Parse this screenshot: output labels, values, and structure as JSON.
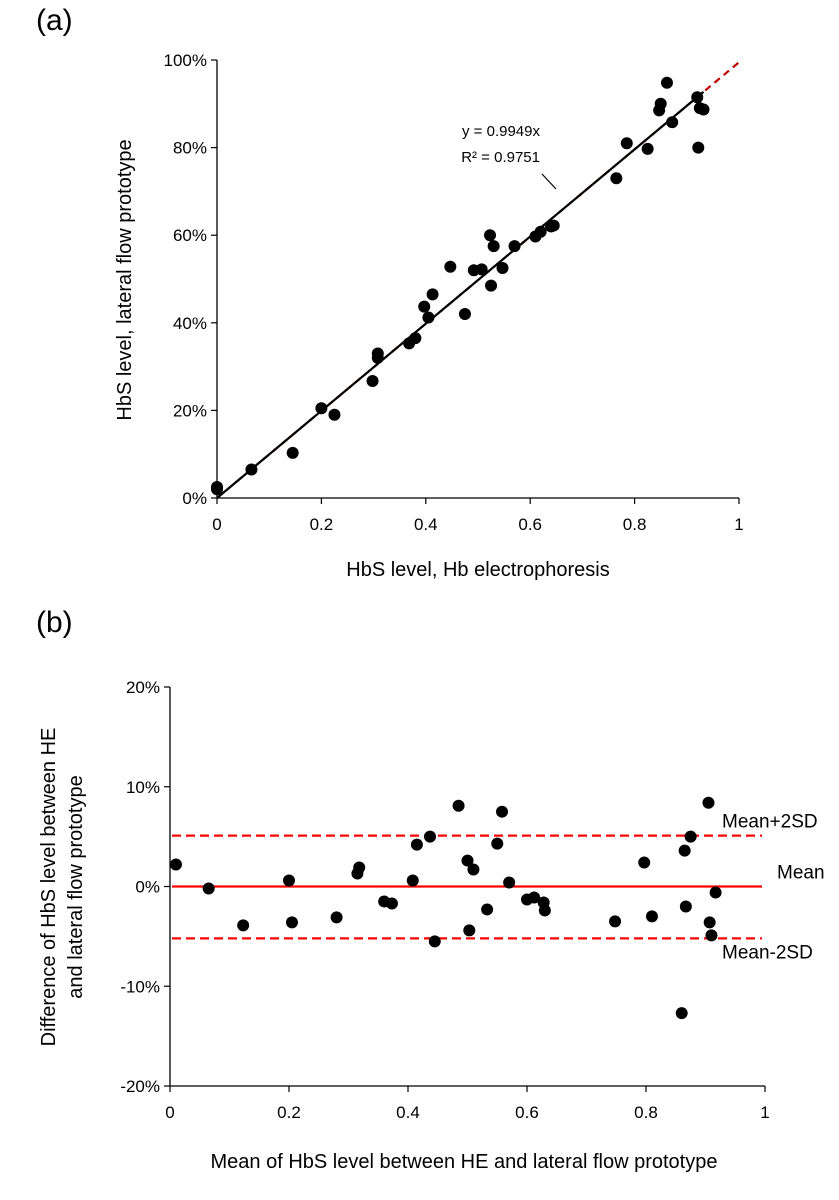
{
  "chart_data": [
    {
      "type": "scatter",
      "panel_label": "(a)",
      "xlabel": "HbS level, Hb electrophoresis",
      "ylabel": "HbS level, lateral flow prototype",
      "xlim": [
        0,
        1
      ],
      "ylim": [
        0,
        1
      ],
      "x_ticks": [
        0,
        0.2,
        0.4,
        0.6,
        0.8,
        1
      ],
      "x_tick_labels": [
        "0",
        "0.2",
        "0.4",
        "0.6",
        "0.8",
        "1"
      ],
      "y_ticks": [
        0,
        0.2,
        0.4,
        0.6,
        0.8,
        1
      ],
      "y_tick_labels": [
        "0%",
        "20%",
        "40%",
        "60%",
        "80%",
        "100%"
      ],
      "grid": false,
      "trendline": {
        "slope": 0.9949,
        "intercept": 0,
        "color": "#c00000",
        "equation_label": "y = 0.9949x",
        "r2_label": "R² = 0.9751"
      },
      "series": [
        {
          "name": "samples",
          "color": "#000000",
          "points": [
            [
              0.0,
              0.02
            ],
            [
              0.0,
              0.025
            ],
            [
              0.066,
              0.065
            ],
            [
              0.145,
              0.103
            ],
            [
              0.2,
              0.205
            ],
            [
              0.225,
              0.19
            ],
            [
              0.298,
              0.267
            ],
            [
              0.308,
              0.32
            ],
            [
              0.308,
              0.33
            ],
            [
              0.368,
              0.353
            ],
            [
              0.38,
              0.365
            ],
            [
              0.397,
              0.437
            ],
            [
              0.405,
              0.412
            ],
            [
              0.413,
              0.465
            ],
            [
              0.447,
              0.528
            ],
            [
              0.475,
              0.42
            ],
            [
              0.492,
              0.52
            ],
            [
              0.507,
              0.522
            ],
            [
              0.523,
              0.6
            ],
            [
              0.525,
              0.485
            ],
            [
              0.53,
              0.575
            ],
            [
              0.547,
              0.525
            ],
            [
              0.57,
              0.575
            ],
            [
              0.61,
              0.597
            ],
            [
              0.62,
              0.608
            ],
            [
              0.64,
              0.62
            ],
            [
              0.645,
              0.622
            ],
            [
              0.765,
              0.73
            ],
            [
              0.785,
              0.81
            ],
            [
              0.825,
              0.797
            ],
            [
              0.847,
              0.885
            ],
            [
              0.85,
              0.9
            ],
            [
              0.862,
              0.948
            ],
            [
              0.872,
              0.858
            ],
            [
              0.92,
              0.915
            ],
            [
              0.922,
              0.8
            ],
            [
              0.925,
              0.89
            ],
            [
              0.932,
              0.887
            ]
          ]
        }
      ]
    },
    {
      "type": "scatter",
      "panel_label": "(b)",
      "xlabel": "Mean of HbS level between HE and lateral flow prototype",
      "ylabel_line1": "Difference of HbS level between HE",
      "ylabel_line2": "and lateral flow prototype",
      "xlim": [
        0,
        1
      ],
      "ylim": [
        -0.2,
        0.2
      ],
      "x_ticks": [
        0,
        0.2,
        0.4,
        0.6,
        0.8,
        1
      ],
      "x_tick_labels": [
        "0",
        "0.2",
        "0.4",
        "0.6",
        "0.8",
        "1"
      ],
      "y_ticks": [
        0.2,
        0.1,
        0,
        -0.1,
        -0.2
      ],
      "y_tick_labels": [
        "20%",
        "10%",
        "0%",
        "-10%",
        "-20%"
      ],
      "grid": false,
      "reference_lines": [
        {
          "name": "Mean+2SD",
          "label": "Mean+2SD",
          "y": 0.051,
          "style": "dashed",
          "color": "#ff0000"
        },
        {
          "name": "Mean",
          "label": "Mean",
          "y": 0.0,
          "style": "solid",
          "color": "#ff0000"
        },
        {
          "name": "Mean-2SD",
          "label": "Mean-2SD",
          "y": -0.052,
          "style": "dashed",
          "color": "#ff0000"
        }
      ],
      "series": [
        {
          "name": "differences",
          "color": "#000000",
          "points": [
            [
              0.01,
              0.022
            ],
            [
              0.065,
              -0.002
            ],
            [
              0.123,
              -0.039
            ],
            [
              0.2,
              0.006
            ],
            [
              0.205,
              -0.036
            ],
            [
              0.28,
              -0.031
            ],
            [
              0.315,
              0.013
            ],
            [
              0.318,
              0.019
            ],
            [
              0.36,
              -0.015
            ],
            [
              0.373,
              -0.017
            ],
            [
              0.408,
              0.006
            ],
            [
              0.415,
              0.042
            ],
            [
              0.437,
              0.05
            ],
            [
              0.445,
              -0.055
            ],
            [
              0.485,
              0.081
            ],
            [
              0.5,
              0.026
            ],
            [
              0.503,
              -0.044
            ],
            [
              0.51,
              0.017
            ],
            [
              0.533,
              -0.023
            ],
            [
              0.55,
              0.043
            ],
            [
              0.558,
              0.075
            ],
            [
              0.57,
              0.004
            ],
            [
              0.6,
              -0.013
            ],
            [
              0.612,
              -0.011
            ],
            [
              0.628,
              -0.016
            ],
            [
              0.63,
              -0.024
            ],
            [
              0.748,
              -0.035
            ],
            [
              0.797,
              0.024
            ],
            [
              0.81,
              -0.03
            ],
            [
              0.86,
              -0.127
            ],
            [
              0.865,
              0.036
            ],
            [
              0.867,
              -0.02
            ],
            [
              0.875,
              0.05
            ],
            [
              0.905,
              0.084
            ],
            [
              0.907,
              -0.036
            ],
            [
              0.91,
              -0.049
            ],
            [
              0.917,
              -0.006
            ]
          ]
        }
      ]
    }
  ]
}
